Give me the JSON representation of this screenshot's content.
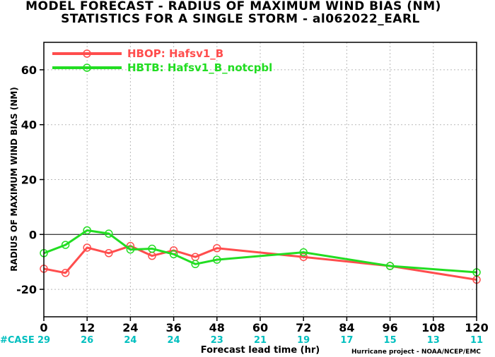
{
  "title_line1": "MODEL FORECAST - RADIUS OF MAXIMUM WIND BIAS (NM)",
  "title_line2": "STATISTICS FOR A SINGLE STORM - al062022_EARL",
  "credit": "Hurricane project - NOAA/NCEP/EMC",
  "case_label": "#CASE",
  "chart_data": {
    "type": "line",
    "title": "MODEL FORECAST - RADIUS OF MAXIMUM WIND BIAS (NM)",
    "subtitle": "STATISTICS FOR A SINGLE STORM - al062022_EARL",
    "xlabel": "Forecast lead time (hr)",
    "ylabel": "RADIUS OF MAXIMUM WIND BIAS (NM)",
    "xlim": [
      0,
      120
    ],
    "ylim": [
      -30,
      70
    ],
    "xticks": [
      0,
      12,
      24,
      36,
      48,
      60,
      72,
      84,
      96,
      108,
      120
    ],
    "yticks": [
      -20,
      0,
      20,
      40,
      60
    ],
    "grid": true,
    "legend_position": "top-left",
    "case_counts": [
      "29",
      "26",
      "24",
      "24",
      "23",
      "21",
      "19",
      "17",
      "15",
      "13",
      "11"
    ],
    "series": [
      {
        "name": "HBOP: Hafsv1_B",
        "color": "#ff4d4d",
        "x": [
          0,
          6,
          12,
          18,
          24,
          30,
          36,
          42,
          48,
          72,
          96,
          120
        ],
        "y": [
          -12.5,
          -14,
          -4.8,
          -6.8,
          -4.2,
          -7.8,
          -5.8,
          -8.2,
          -5,
          -8.2,
          -11.5,
          -16.5
        ]
      },
      {
        "name": "HBTB: Hafsv1_B_notcpbl",
        "color": "#22dd22",
        "x": [
          0,
          6,
          12,
          18,
          24,
          30,
          36,
          42,
          48,
          72,
          96,
          120
        ],
        "y": [
          -6.8,
          -3.8,
          1.5,
          0.3,
          -5.5,
          -5.2,
          -7.2,
          -10.8,
          -9.2,
          -6.5,
          -11.5,
          -13.8
        ]
      }
    ]
  }
}
